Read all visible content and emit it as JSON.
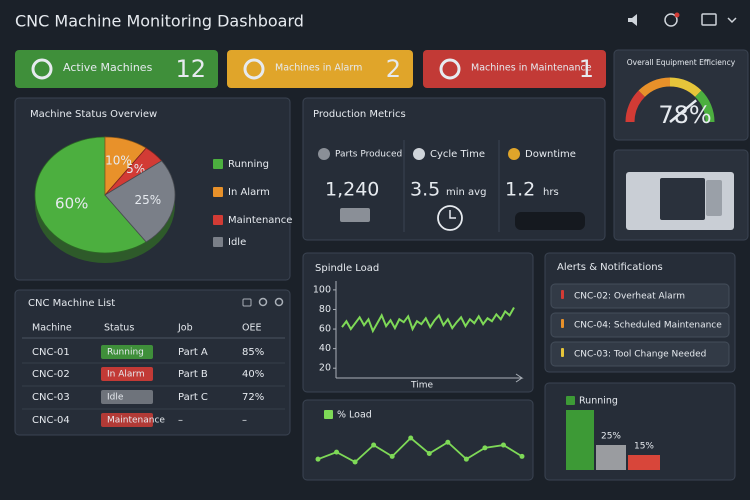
{
  "header": {
    "title": "CNC Machine Monitoring Dashboard"
  },
  "kpis": [
    {
      "label": "Active Machines",
      "value": 12
    },
    {
      "label": "Machines in Alarm",
      "value": 2
    },
    {
      "label": "Machines in Maintenance",
      "value": 1
    }
  ],
  "oee": {
    "title": "Overall Equipment Efficiency",
    "value": 78,
    "value_label": "78%",
    "lim": [
      0,
      100
    ]
  },
  "status_overview": {
    "title": "Machine Status Overview"
  },
  "production": {
    "title": "Production Metrics",
    "metrics": [
      {
        "label": "Parts Produced",
        "value": "1,240"
      },
      {
        "label": "Cycle Time",
        "value": "3.5",
        "unit": "min avg"
      },
      {
        "label": "Downtime",
        "value": "1.2",
        "unit": "hrs"
      }
    ]
  },
  "machine_list": {
    "title": "CNC Machine List",
    "columns": [
      "Machine",
      "Status",
      "Job",
      "OEE"
    ],
    "rows": [
      [
        "CNC-01",
        "Running",
        "Part A",
        "85%"
      ],
      [
        "CNC-02",
        "In Alarm",
        "Part B",
        "40%"
      ],
      [
        "CNC-03",
        "Idle",
        "Part C",
        "72%"
      ],
      [
        "CNC-04",
        "Maintenance",
        "–",
        "–"
      ]
    ]
  },
  "alerts": {
    "title": "Alerts & Notifications",
    "items": [
      "CNC-02: Overheat Alarm",
      "CNC-04: Scheduled Maintenance",
      "CNC-03: Tool Change Needed"
    ]
  },
  "chart_data": [
    {
      "type": "pie",
      "categories": [
        "Running",
        "In Alarm",
        "Maintenance",
        "Idle"
      ],
      "values": [
        60,
        10,
        5,
        25
      ],
      "value_labels": [
        "60%",
        "10%",
        "5%",
        "25%"
      ],
      "colors": [
        "#4caf3f",
        "#e8912a",
        "#d23b35",
        "#7a7f88"
      ]
    },
    {
      "type": "line",
      "title": "Spindle Load",
      "x_label": "Time",
      "values": [
        62,
        68,
        60,
        66,
        72,
        64,
        70,
        58,
        66,
        74,
        63,
        69,
        61,
        70,
        67,
        73,
        60,
        68,
        65,
        71,
        62,
        69,
        74,
        64,
        70,
        61,
        67,
        72,
        63,
        70,
        66,
        73,
        65,
        71,
        68,
        75,
        70,
        78,
        74,
        82
      ],
      "ylim": [
        10,
        105
      ],
      "yticks": [
        20,
        40,
        60,
        80,
        100
      ],
      "color": "#7ed957"
    },
    {
      "type": "line",
      "title": "% Load",
      "values": [
        40,
        45,
        38,
        50,
        42,
        55,
        44,
        52,
        40,
        48,
        50,
        42
      ],
      "color": "#7ed957"
    },
    {
      "type": "bar",
      "legend": "Running",
      "values": [
        60,
        25,
        15
      ],
      "value_labels": [
        null,
        "25%",
        "15%"
      ],
      "colors": [
        "#3d9a36",
        "#9a9ca0",
        "#d8463a"
      ]
    }
  ]
}
